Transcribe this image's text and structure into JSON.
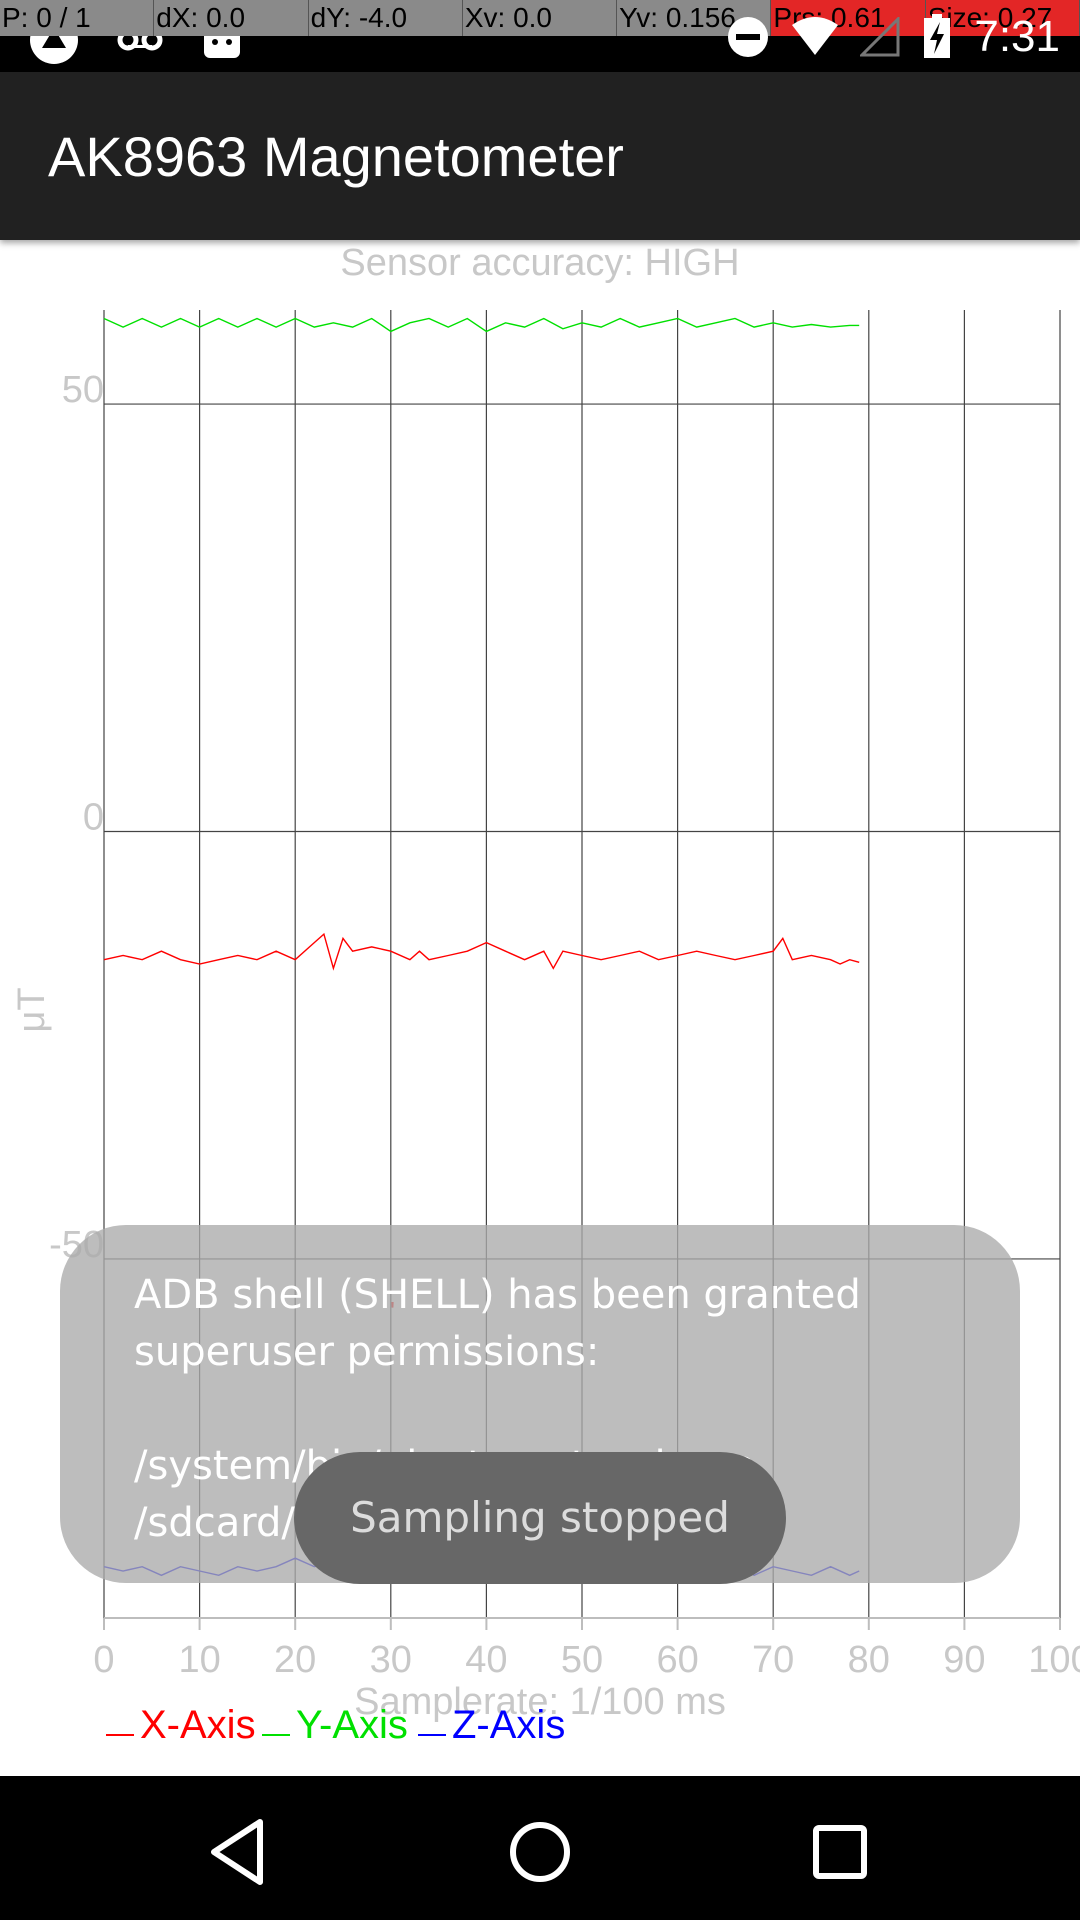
{
  "status_bar": {
    "pointer_overlay": [
      "P: 0 / 1",
      "dX: 0.0",
      "dY: -4.0",
      "Xv: 0.0",
      "Yv: 0.156",
      "Prs: 0.61",
      "Size: 0.27"
    ],
    "time": "7:31",
    "left_icons": [
      "app-icon",
      "voicemail-icon",
      "android-icon"
    ],
    "right_icons": [
      "do-not-disturb-icon",
      "wifi-icon",
      "cell-signal-icon",
      "battery-charging-icon"
    ]
  },
  "app_bar": {
    "title": "AK8963 Magnetometer"
  },
  "sensor_accuracy": "Sensor accuracy: HIGH",
  "chart_data": {
    "type": "line",
    "ylabel": "μT",
    "xlabel": "Samplerate: 1/100 ms",
    "x_ticks": [
      "0",
      "10",
      "20",
      "30",
      "40",
      "50",
      "60",
      "70",
      "80",
      "90",
      "100"
    ],
    "y_ticks": [
      "50",
      "0",
      "-50"
    ],
    "xlim": [
      0,
      100
    ],
    "ylim": [
      -92,
      61
    ],
    "grid": true,
    "legend": "bottom-left",
    "series": [
      {
        "name": "X-Axis",
        "color": "#ff0000",
        "x": [
          0,
          2,
          4,
          6,
          8,
          10,
          12,
          14,
          16,
          18,
          20,
          22,
          23,
          24,
          25,
          26,
          28,
          30,
          32,
          33,
          34,
          36,
          38,
          40,
          42,
          44,
          46,
          47,
          48,
          50,
          52,
          54,
          56,
          58,
          60,
          62,
          64,
          66,
          68,
          70,
          71,
          72,
          74,
          76,
          77,
          78,
          79
        ],
        "values": [
          -15,
          -14.5,
          -15,
          -14,
          -15,
          -15.5,
          -15,
          -14.5,
          -15,
          -14,
          -15,
          -13,
          -12,
          -16,
          -12.5,
          -14,
          -13.5,
          -14,
          -15,
          -14,
          -15,
          -14.5,
          -14,
          -13,
          -14,
          -15,
          -14,
          -16,
          -14,
          -14.5,
          -15,
          -14.5,
          -14,
          -15,
          -14.5,
          -14,
          -14.5,
          -15,
          -14.5,
          -14,
          -12.5,
          -15,
          -14.5,
          -15,
          -15.5,
          -15,
          -15.3
        ]
      },
      {
        "name": "Y-Axis",
        "color": "#00e000",
        "x": [
          0,
          2,
          4,
          6,
          8,
          10,
          12,
          14,
          16,
          18,
          20,
          22,
          24,
          26,
          28,
          30,
          32,
          34,
          36,
          38,
          40,
          42,
          44,
          46,
          48,
          50,
          52,
          54,
          56,
          58,
          60,
          62,
          64,
          66,
          68,
          70,
          72,
          74,
          76,
          78,
          79
        ],
        "values": [
          60,
          59,
          60,
          59,
          60,
          59,
          60,
          59,
          60,
          59,
          60,
          59,
          59.5,
          59,
          60,
          58.5,
          59.5,
          60,
          59,
          60,
          58.5,
          59.5,
          59,
          60,
          58.8,
          59.5,
          59,
          60,
          59,
          59.5,
          60,
          59,
          59.5,
          60,
          59,
          59.5,
          59,
          59.3,
          59,
          59.2,
          59.2
        ]
      },
      {
        "name": "Z-Axis",
        "color": "#0000ff",
        "x": [
          0,
          2,
          4,
          6,
          8,
          10,
          12,
          14,
          16,
          18,
          20,
          22,
          24,
          26,
          28,
          30,
          32,
          34,
          36,
          38,
          40,
          42,
          44,
          46,
          48,
          50,
          52,
          54,
          56,
          58,
          60,
          62,
          64,
          66,
          68,
          70,
          72,
          74,
          76,
          78,
          79
        ],
        "values": [
          -86,
          -86.5,
          -86,
          -87,
          -86,
          -86.5,
          -87,
          -86,
          -86.5,
          -86,
          -85,
          -86,
          -85.5,
          -86,
          -86,
          -85,
          -86.5,
          -86,
          -87,
          -86,
          -86.5,
          -86,
          -87,
          -86.5,
          -86,
          -86,
          -87,
          -86.5,
          -86,
          -87,
          -86,
          -86.5,
          -86,
          -85.5,
          -87,
          -86,
          -86.5,
          -87,
          -86,
          -87,
          -86.5
        ]
      }
    ],
    "stray_mark_label": "'"
  },
  "toast_root": "ADB shell (SHELL) has been granted superuser permissions:\n\n/system/bin/uiautomator dump /sdcard/tmp.xml",
  "toast_sampling": "Sampling stopped",
  "nav_bar": {
    "buttons": [
      "back-icon",
      "home-icon",
      "recents-icon"
    ]
  }
}
